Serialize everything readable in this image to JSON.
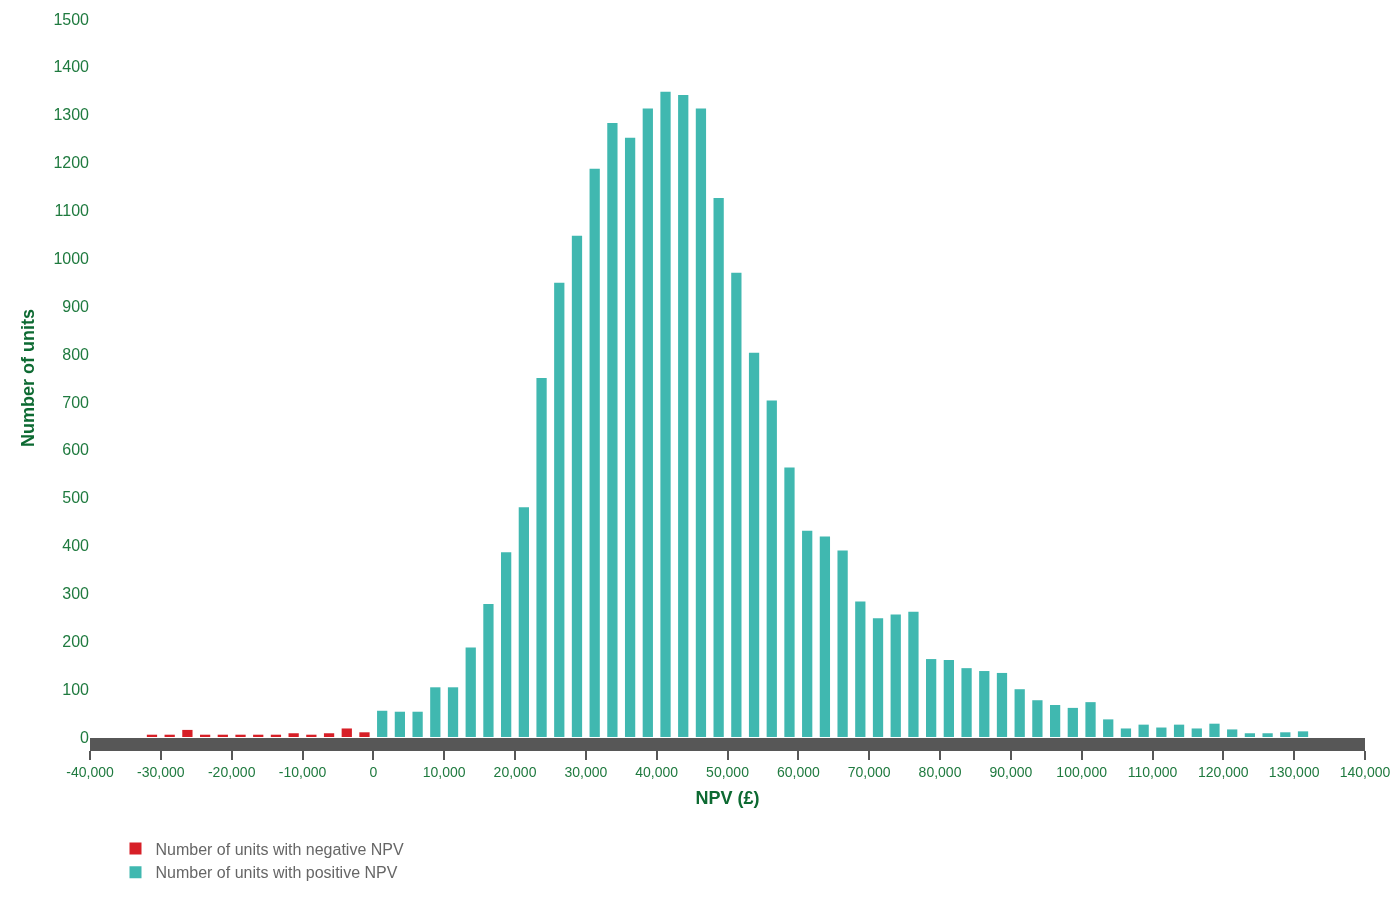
{
  "chart_data": {
    "type": "histogram",
    "xlabel": "NPV (£)",
    "ylabel": "Number of units",
    "bins": [
      -32500,
      -30000,
      -27500,
      -25000,
      -22500,
      -20000,
      -17500,
      -15000,
      -12500,
      -10000,
      -7500,
      -5000,
      -2500,
      0,
      2500,
      5000,
      7500,
      10000,
      12500,
      15000,
      17500,
      20000,
      22500,
      25000,
      27500,
      30000,
      32500,
      35000,
      37500,
      40000,
      42500,
      45000,
      47500,
      50000,
      52500,
      55000,
      57500,
      60000,
      62500,
      65000,
      67500,
      70000,
      72500,
      75000,
      77500,
      80000,
      82500,
      85000,
      87500,
      90000,
      92500,
      95000,
      97500,
      100000,
      102500,
      105000,
      107500,
      110000,
      112500,
      115000,
      117500,
      120000,
      122500,
      125000,
      127500,
      130000,
      132500
    ],
    "series": [
      {
        "name": "Number of units with negative NPV",
        "color": "#d71f27",
        "values": [
          5,
          5,
          15,
          5,
          5,
          5,
          5,
          5,
          8,
          5,
          8,
          18,
          10,
          null,
          null,
          null,
          null,
          null,
          null,
          null,
          null,
          null,
          null,
          null,
          null,
          null,
          null,
          null,
          null,
          null,
          null,
          null,
          null,
          null,
          null,
          null,
          null,
          null,
          null,
          null,
          null,
          null,
          null,
          null,
          null,
          null,
          null,
          null,
          null,
          null,
          null,
          null,
          null,
          null,
          null,
          null,
          null,
          null,
          null,
          null,
          null,
          null,
          null,
          null,
          null,
          null
        ]
      },
      {
        "name": "Number of units with positive NPV",
        "color": "#40b8b0",
        "values": [
          null,
          null,
          null,
          null,
          null,
          null,
          null,
          null,
          null,
          null,
          null,
          null,
          null,
          55,
          53,
          53,
          104,
          104,
          187,
          278,
          386,
          480,
          750,
          949,
          1047,
          1187,
          1283,
          1252,
          1313,
          1348,
          1341,
          1313,
          1126,
          970,
          803,
          703,
          563,
          431,
          419,
          390,
          283,
          248,
          256,
          262,
          163,
          161,
          144,
          138,
          134,
          100,
          77,
          67,
          61,
          73,
          37,
          18,
          26,
          20,
          26,
          18,
          28,
          16,
          8,
          8,
          10,
          12
        ]
      }
    ],
    "xlim": [
      -40000,
      140000
    ],
    "xticks": [
      {
        "value": -40000,
        "label": "-40,000"
      },
      {
        "value": -30000,
        "label": "-30,000"
      },
      {
        "value": -20000,
        "label": "-20,000"
      },
      {
        "value": -10000,
        "label": "-10,000"
      },
      0,
      {
        "value": 10000,
        "label": "10,000"
      },
      {
        "value": 20000,
        "label": "20,000"
      },
      {
        "value": 30000,
        "label": "30,000"
      },
      {
        "value": 40000,
        "label": "40,000"
      },
      {
        "value": 50000,
        "label": "50,000"
      },
      {
        "value": 60000,
        "label": "60,000"
      },
      {
        "value": 70000,
        "label": "70,000"
      },
      {
        "value": 80000,
        "label": "80,000"
      },
      {
        "value": 90000,
        "label": "90,000"
      },
      {
        "value": 100000,
        "label": "100,000"
      },
      {
        "value": 110000,
        "label": "110,000"
      },
      {
        "value": 120000,
        "label": "120,000"
      },
      {
        "value": 130000,
        "label": "130,000"
      },
      {
        "value": 140000,
        "label": "140,000"
      }
    ],
    "ylim": [
      0,
      1500
    ],
    "yticks": [
      0,
      100,
      200,
      300,
      400,
      500,
      600,
      700,
      800,
      900,
      1000,
      1100,
      1200,
      1300,
      1400,
      1500
    ],
    "grid": false,
    "legend": "bottom left"
  }
}
